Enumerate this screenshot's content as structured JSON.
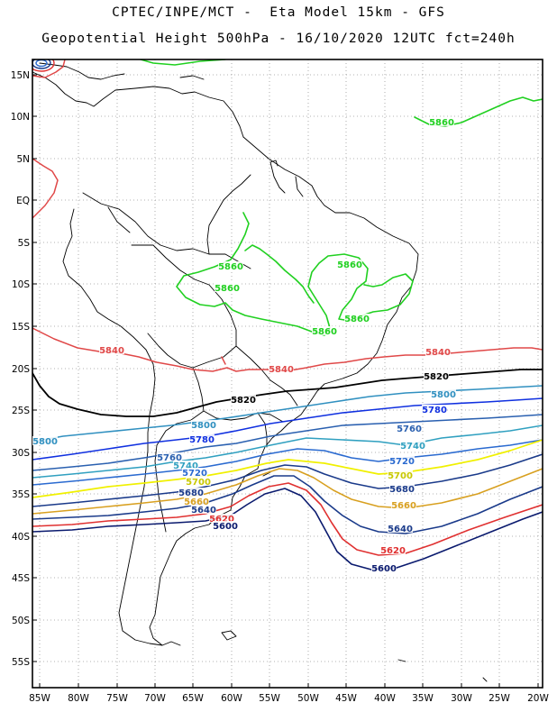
{
  "title_line1": "CPTEC/INPE/MCT -  Eta Model 15km - GFS",
  "title_line2": "Geopotential Height 500hPa - 16/10/2020 12UTC fct=240h",
  "lat_ticks": [
    "15N",
    "10N",
    "5N",
    "EQ",
    "5S",
    "10S",
    "15S",
    "20S",
    "25S",
    "30S",
    "35S",
    "40S",
    "45S",
    "50S",
    "55S"
  ],
  "lon_ticks": [
    "85W",
    "80W",
    "75W",
    "70W",
    "65W",
    "60W",
    "55W",
    "50W",
    "45W",
    "40W",
    "35W",
    "30W",
    "25W",
    "20W"
  ],
  "colors": {
    "c5600": "#0a1a6e",
    "c5620": "#e03030",
    "c5640": "#1a3a8a",
    "c5660": "#d8a020",
    "c5700": "#f0f000",
    "c5720": "#2a6ad0",
    "c5740": "#30a0c0",
    "c5760": "#2a60b0",
    "c5780": "#1030e0",
    "c5800": "#3090c0",
    "c5820": "#000000",
    "c5840": "#e04848",
    "c5860": "#20d020"
  },
  "contour_labels": [
    {
      "text": "5860",
      "color": "#20d020"
    },
    {
      "text": "5860",
      "color": "#20d020"
    },
    {
      "text": "5860",
      "color": "#20d020"
    },
    {
      "text": "5860",
      "color": "#20d020"
    },
    {
      "text": "5860",
      "color": "#20d020"
    },
    {
      "text": "5860",
      "color": "#20d020"
    },
    {
      "text": "5840",
      "color": "#e04848"
    },
    {
      "text": "5840",
      "color": "#e04848"
    },
    {
      "text": "5840",
      "color": "#e04848"
    },
    {
      "text": "5820",
      "color": "#000000"
    },
    {
      "text": "5820",
      "color": "#000000"
    },
    {
      "text": "5800",
      "color": "#3090c0"
    },
    {
      "text": "5800",
      "color": "#3090c0"
    },
    {
      "text": "5800",
      "color": "#3090c0"
    },
    {
      "text": "5780",
      "color": "#1030e0"
    },
    {
      "text": "5780",
      "color": "#1030e0"
    },
    {
      "text": "5760",
      "color": "#2a60b0"
    },
    {
      "text": "5760",
      "color": "#2a60b0"
    },
    {
      "text": "5740",
      "color": "#30a0c0"
    },
    {
      "text": "5740",
      "color": "#30a0c0"
    },
    {
      "text": "5720",
      "color": "#2a6ad0"
    },
    {
      "text": "5720",
      "color": "#2a6ad0"
    },
    {
      "text": "5700",
      "color": "#c8c800"
    },
    {
      "text": "5700",
      "color": "#c8c800"
    },
    {
      "text": "5680",
      "color": "#1a3a8a"
    },
    {
      "text": "5680",
      "color": "#1a3a8a"
    },
    {
      "text": "5660",
      "color": "#d8a020"
    },
    {
      "text": "5660",
      "color": "#d8a020"
    },
    {
      "text": "5640",
      "color": "#1a3a8a"
    },
    {
      "text": "5640",
      "color": "#1a3a8a"
    },
    {
      "text": "5620",
      "color": "#e03030"
    },
    {
      "text": "5620",
      "color": "#e03030"
    },
    {
      "text": "5600",
      "color": "#0a1a6e"
    },
    {
      "text": "5600",
      "color": "#0a1a6e"
    }
  ]
}
